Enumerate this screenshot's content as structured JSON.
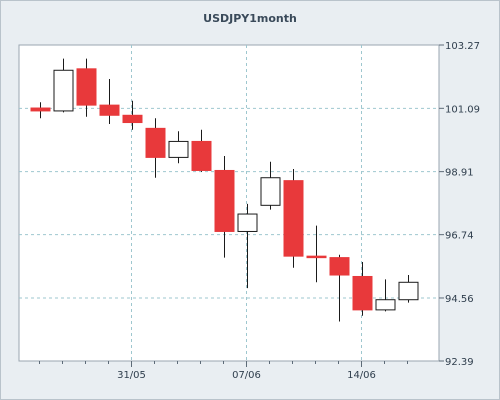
{
  "chart_data": {
    "type": "candlestick",
    "title": "USDJPY1month",
    "xlabel": "",
    "ylabel": "",
    "ylim": [
      92.39,
      103.27
    ],
    "yticks": [
      "103.27",
      "101.09",
      "98.91",
      "96.74",
      "94.56",
      "92.39"
    ],
    "xticks": [
      "31/05",
      "07/06",
      "14/06"
    ],
    "grid": true,
    "colors": {
      "bullish": "#ffffff",
      "bearish": "#e8393b",
      "wick": "#1a1a1a",
      "grid": "#9ec7cf",
      "plot_bg": "#ffffff"
    },
    "candles": [
      {
        "open": 101.1,
        "high": 101.3,
        "low": 100.75,
        "close": 101.0
      },
      {
        "open": 101.0,
        "high": 102.8,
        "low": 100.95,
        "close": 102.4
      },
      {
        "open": 102.45,
        "high": 102.8,
        "low": 100.8,
        "close": 101.2
      },
      {
        "open": 101.2,
        "high": 102.1,
        "low": 100.55,
        "close": 100.85
      },
      {
        "open": 100.85,
        "high": 101.35,
        "low": 100.35,
        "close": 100.6
      },
      {
        "open": 100.4,
        "high": 100.75,
        "low": 98.7,
        "close": 99.4
      },
      {
        "open": 99.4,
        "high": 100.3,
        "low": 99.2,
        "close": 99.95
      },
      {
        "open": 99.95,
        "high": 100.35,
        "low": 98.9,
        "close": 98.95
      },
      {
        "open": 98.95,
        "high": 99.45,
        "low": 95.95,
        "close": 96.85
      },
      {
        "open": 96.85,
        "high": 97.8,
        "low": 94.9,
        "close": 97.45
      },
      {
        "open": 97.75,
        "high": 99.25,
        "low": 97.6,
        "close": 98.7
      },
      {
        "open": 98.6,
        "high": 99.0,
        "low": 95.6,
        "close": 96.0
      },
      {
        "open": 96.0,
        "high": 97.05,
        "low": 95.1,
        "close": 95.95
      },
      {
        "open": 95.95,
        "high": 96.05,
        "low": 93.75,
        "close": 95.35
      },
      {
        "open": 95.3,
        "high": 95.8,
        "low": 93.95,
        "close": 94.15
      },
      {
        "open": 94.15,
        "high": 95.2,
        "low": 94.1,
        "close": 94.5
      },
      {
        "open": 94.5,
        "high": 95.35,
        "low": 94.4,
        "close": 95.1
      }
    ]
  }
}
